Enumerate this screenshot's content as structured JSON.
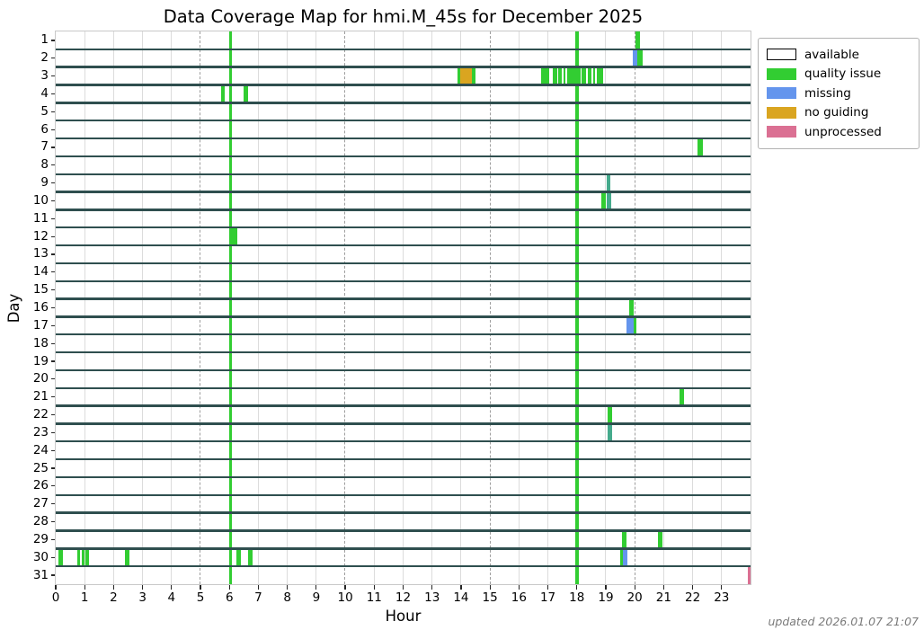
{
  "figure": {
    "title": "Data Coverage Map for hmi.M_45s for December 2025",
    "xlabel": "Hour",
    "ylabel": "Day",
    "updated_note": "updated 2026.01.07 21:07"
  },
  "legend": {
    "items": [
      {
        "label": "available",
        "type": "available"
      },
      {
        "label": "quality issue",
        "type": "quality issue"
      },
      {
        "label": "missing",
        "type": "missing"
      },
      {
        "label": "no guiding",
        "type": "no guiding"
      },
      {
        "label": "unprocessed",
        "type": "unprocessed"
      }
    ]
  },
  "palette": {
    "available": "#ffffff",
    "quality issue": "#32CD32",
    "missing": "#6495ED",
    "no guiding": "#DAA520",
    "unprocessed": "#DB7093",
    "overlap": "#45AA8C",
    "row_line": "#2F4F4F",
    "grid_solid": "#dcdcdc",
    "grid_dashed": "#9e9e9e"
  },
  "chart_data": {
    "type": "heatmap",
    "title": "Data Coverage Map for hmi.M_45s for December 2025",
    "xlabel": "Hour",
    "ylabel": "Day",
    "x_range": [
      0,
      24
    ],
    "days": 31,
    "x_ticks": [
      0,
      1,
      2,
      3,
      4,
      5,
      6,
      7,
      8,
      9,
      10,
      11,
      12,
      13,
      14,
      15,
      16,
      17,
      18,
      19,
      20,
      21,
      22,
      23
    ],
    "y_ticks": [
      1,
      2,
      3,
      4,
      5,
      6,
      7,
      8,
      9,
      10,
      11,
      12,
      13,
      14,
      15,
      16,
      17,
      18,
      19,
      20,
      21,
      22,
      23,
      24,
      25,
      26,
      27,
      28,
      29,
      30,
      31
    ],
    "dashed_gridlines": [
      5,
      10,
      15,
      20
    ],
    "background_state": "available",
    "daily_lines": [
      {
        "start": 6.0,
        "end": 6.1,
        "type": "quality issue"
      },
      {
        "start": 17.95,
        "end": 18.08,
        "type": "quality issue"
      }
    ],
    "segments": [
      {
        "day": 1,
        "start": 20.02,
        "end": 20.18,
        "type": "quality issue"
      },
      {
        "day": 2,
        "start": 19.94,
        "end": 20.1,
        "type": "missing"
      },
      {
        "day": 2,
        "start": 20.1,
        "end": 20.27,
        "type": "quality issue"
      },
      {
        "day": 3,
        "start": 13.88,
        "end": 13.98,
        "type": "quality issue"
      },
      {
        "day": 3,
        "start": 13.98,
        "end": 14.38,
        "type": "no guiding"
      },
      {
        "day": 3,
        "start": 14.38,
        "end": 14.5,
        "type": "quality issue"
      },
      {
        "day": 3,
        "start": 16.78,
        "end": 17.05,
        "type": "quality issue"
      },
      {
        "day": 3,
        "start": 17.17,
        "end": 17.31,
        "type": "quality issue"
      },
      {
        "day": 3,
        "start": 17.37,
        "end": 17.49,
        "type": "quality issue"
      },
      {
        "day": 3,
        "start": 17.54,
        "end": 17.61,
        "type": "quality issue"
      },
      {
        "day": 3,
        "start": 17.67,
        "end": 18.12,
        "type": "quality issue"
      },
      {
        "day": 3,
        "start": 18.17,
        "end": 18.31,
        "type": "quality issue"
      },
      {
        "day": 3,
        "start": 18.38,
        "end": 18.49,
        "type": "quality issue"
      },
      {
        "day": 3,
        "start": 18.56,
        "end": 18.64,
        "type": "quality issue"
      },
      {
        "day": 3,
        "start": 18.69,
        "end": 18.91,
        "type": "quality issue"
      },
      {
        "day": 4,
        "start": 5.7,
        "end": 5.85,
        "type": "quality issue"
      },
      {
        "day": 4,
        "start": 6.5,
        "end": 6.66,
        "type": "quality issue"
      },
      {
        "day": 7,
        "start": 22.18,
        "end": 22.34,
        "type": "quality issue"
      },
      {
        "day": 9,
        "start": 19.03,
        "end": 19.16,
        "type": "overlap"
      },
      {
        "day": 10,
        "start": 18.85,
        "end": 19.0,
        "type": "quality issue"
      },
      {
        "day": 10,
        "start": 19.03,
        "end": 19.2,
        "type": "overlap"
      },
      {
        "day": 12,
        "start": 6.1,
        "end": 6.26,
        "type": "quality issue"
      },
      {
        "day": 16,
        "start": 19.8,
        "end": 19.96,
        "type": "quality issue"
      },
      {
        "day": 17,
        "start": 19.7,
        "end": 19.95,
        "type": "missing"
      },
      {
        "day": 17,
        "start": 19.95,
        "end": 20.06,
        "type": "quality issue"
      },
      {
        "day": 21,
        "start": 21.55,
        "end": 21.71,
        "type": "quality issue"
      },
      {
        "day": 22,
        "start": 19.05,
        "end": 19.21,
        "type": "quality issue"
      },
      {
        "day": 23,
        "start": 19.05,
        "end": 19.23,
        "type": "overlap"
      },
      {
        "day": 29,
        "start": 19.55,
        "end": 19.7,
        "type": "quality issue"
      },
      {
        "day": 29,
        "start": 20.8,
        "end": 20.96,
        "type": "quality issue"
      },
      {
        "day": 30,
        "start": 0.1,
        "end": 0.26,
        "type": "quality issue"
      },
      {
        "day": 30,
        "start": 0.73,
        "end": 0.84,
        "type": "quality issue"
      },
      {
        "day": 30,
        "start": 0.89,
        "end": 0.99,
        "type": "quality issue"
      },
      {
        "day": 30,
        "start": 1.04,
        "end": 1.14,
        "type": "quality issue"
      },
      {
        "day": 30,
        "start": 2.4,
        "end": 2.56,
        "type": "quality issue"
      },
      {
        "day": 30,
        "start": 6.25,
        "end": 6.41,
        "type": "quality issue"
      },
      {
        "day": 30,
        "start": 6.64,
        "end": 6.8,
        "type": "quality issue"
      },
      {
        "day": 30,
        "start": 19.5,
        "end": 19.58,
        "type": "quality issue"
      },
      {
        "day": 30,
        "start": 19.58,
        "end": 19.74,
        "type": "missing"
      },
      {
        "day": 31,
        "start": 23.9,
        "end": 24.0,
        "type": "unprocessed"
      }
    ]
  }
}
